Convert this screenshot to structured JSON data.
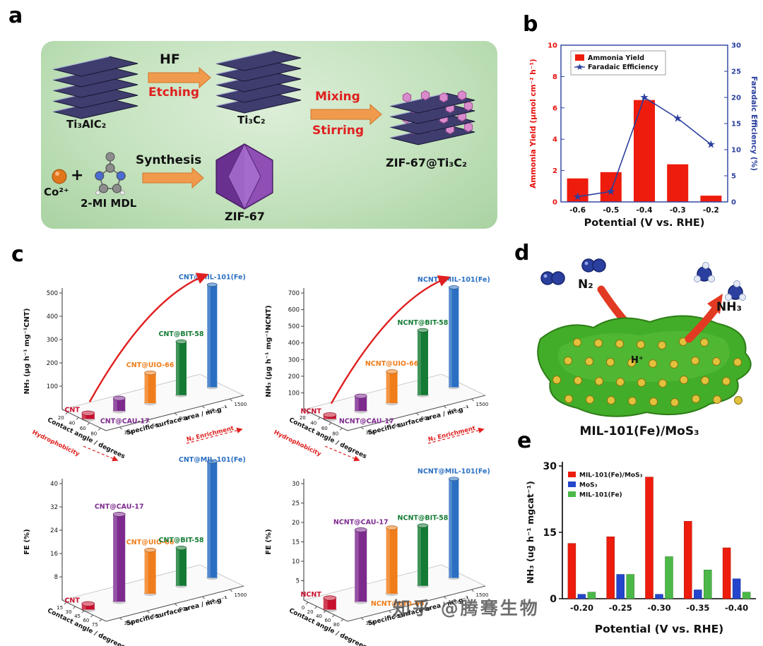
{
  "figure": {
    "panel_labels": {
      "a": "a",
      "b": "b",
      "c": "c",
      "d": "d",
      "e": "e"
    },
    "watermark": "知乎 @腾骞生物"
  },
  "panel_a": {
    "ti3alc2": "Ti₃AlC₂",
    "hf": "HF",
    "etching": "Etching",
    "ti3c2": "Ti₃C₂",
    "mixing": "Mixing",
    "stirring": "Stirring",
    "product": "ZIF-67@Ti₃C₂",
    "co": "Co²⁺",
    "plus": "+",
    "mdl": "2-MI MDL",
    "synthesis": "Synthesis",
    "zif67": "ZIF-67"
  },
  "panel_d": {
    "n2": "N₂",
    "h_plus": "H⁺",
    "nh3": "NH₃",
    "caption": "MIL-101(Fe)/MoS₃"
  },
  "chart_data": [
    {
      "id": "b",
      "type": "bar+line",
      "xlabel": "Potential (V vs. RHE)",
      "categories": [
        "-0.6",
        "-0.5",
        "-0.4",
        "-0.3",
        "-0.2"
      ],
      "left_axis": {
        "label": "Ammonia Yield (μmol cm⁻² h⁻¹)",
        "range": [
          0,
          10
        ],
        "ticks": [
          0,
          2,
          4,
          6,
          8,
          10
        ],
        "color": "#e8100c"
      },
      "right_axis": {
        "label": "Faradaic Efficiency (%)",
        "range": [
          0,
          30
        ],
        "ticks": [
          0,
          5,
          10,
          15,
          20,
          25,
          30
        ],
        "color": "#2b3f9e"
      },
      "series": [
        {
          "name": "Ammonia Yield",
          "type": "bar",
          "color": "#ee1c0c",
          "values": [
            1.5,
            1.9,
            6.5,
            2.4,
            0.4
          ]
        },
        {
          "name": "Faradaic Efficiency",
          "type": "line",
          "color": "#2b3f9e",
          "values": [
            1,
            2,
            20,
            16,
            11
          ]
        }
      ]
    },
    {
      "id": "c-top-left",
      "type": "bar3d",
      "ylabel": "NH₃ (μg h⁻¹ mg⁻¹CNT)",
      "ylim": [
        0,
        500
      ],
      "yticks": [
        100,
        200,
        300,
        400,
        500
      ],
      "x1label": "Contact angle / degrees",
      "x2label": "Specific surface area / m² g⁻¹",
      "x1ticks": [
        20,
        40,
        60,
        80
      ],
      "x2ticks": [
        300,
        600,
        900,
        1200,
        1500
      ],
      "red_left": "Hydrophobicity",
      "red_right": "N₂ Enrichment",
      "arrow": true,
      "label_pos": [
        "left",
        "below",
        "above",
        "above",
        "above"
      ],
      "bars": [
        {
          "label": "CNT",
          "value": 25,
          "color": "#c8102e"
        },
        {
          "label": "CNT@CAU-17",
          "value": 55,
          "color": "#7d2a8e"
        },
        {
          "label": "CNT@UIO-66",
          "value": 130,
          "color": "#f07d1a"
        },
        {
          "label": "CNT@BIT-58",
          "value": 230,
          "color": "#147a34"
        },
        {
          "label": "CNT@MIL-101(Fe)",
          "value": 440,
          "color": "#2a6fc2"
        }
      ]
    },
    {
      "id": "c-top-right",
      "type": "bar3d",
      "ylabel": "NH₃ (μg h⁻¹ mg⁻¹NCNT)",
      "ylim": [
        0,
        700
      ],
      "yticks": [
        100,
        200,
        300,
        400,
        500,
        600,
        700
      ],
      "x1label": "Contact angle / degrees",
      "x2label": "Specific surface area / m² g⁻¹",
      "x1ticks": [
        20,
        40,
        60,
        80
      ],
      "x2ticks": [
        300,
        600,
        900,
        1200,
        1500
      ],
      "red_left": "Hydrophobicity",
      "red_right": "N₂ Enrichment",
      "arrow": true,
      "label_pos": [
        "left",
        "below",
        "above",
        "above",
        "above"
      ],
      "bars": [
        {
          "label": "NCNT",
          "value": 25,
          "color": "#c8102e"
        },
        {
          "label": "NCNT@CAU-17",
          "value": 90,
          "color": "#7d2a8e"
        },
        {
          "label": "NCNT@UIO-66",
          "value": 190,
          "color": "#f07d1a"
        },
        {
          "label": "NCNT@BIT-58",
          "value": 390,
          "color": "#147a34"
        },
        {
          "label": "NCNT@MIL-101(Fe)",
          "value": 600,
          "color": "#2a6fc2"
        }
      ]
    },
    {
      "id": "c-bottom-left",
      "type": "bar3d",
      "ylabel": "FE (%)",
      "ylim": [
        0,
        40
      ],
      "yticks": [
        8,
        16,
        24,
        32,
        40
      ],
      "x1label": "Contact angle / degrees",
      "x2label": "Specific surface area / m² g⁻¹",
      "x1ticks": [
        15,
        30,
        45,
        60,
        75
      ],
      "x2ticks": [
        300,
        600,
        900,
        1200,
        1500
      ],
      "arrow": false,
      "label_pos": [
        "left",
        "above",
        "above",
        "above",
        "above"
      ],
      "bars": [
        {
          "label": "CNT",
          "value": 2,
          "color": "#c8102e"
        },
        {
          "label": "CNT@CAU-17",
          "value": 30,
          "color": "#7d2a8e"
        },
        {
          "label": "CNT@UIO-66",
          "value": 15,
          "color": "#f07d1a"
        },
        {
          "label": "CNT@BIT-58",
          "value": 13,
          "color": "#147a34"
        },
        {
          "label": "CNT@MIL-101(Fe)",
          "value": 40,
          "color": "#2a6fc2"
        }
      ]
    },
    {
      "id": "c-bottom-right",
      "type": "bar3d",
      "ylabel": "FE (%)",
      "ylim": [
        0,
        30
      ],
      "yticks": [
        5,
        10,
        15,
        20,
        25,
        30
      ],
      "x1label": "Contact angle / degrees",
      "x2label": "Specific surface area / m² g⁻¹",
      "x1ticks": [
        0,
        20,
        40,
        60,
        80
      ],
      "x2ticks": [
        300,
        600,
        900,
        1200,
        1500
      ],
      "arrow": false,
      "label_pos": [
        "left",
        "above",
        "below",
        "above",
        "above"
      ],
      "bars": [
        {
          "label": "NCNT",
          "value": 3,
          "color": "#c8102e"
        },
        {
          "label": "NCNT@CAU-17",
          "value": 18.5,
          "color": "#7d2a8e"
        },
        {
          "label": "NCNT@UIO-66",
          "value": 17,
          "color": "#f07d1a"
        },
        {
          "label": "NCNT@BIT-58",
          "value": 15.5,
          "color": "#147a34"
        },
        {
          "label": "NCNT@MIL-101(Fe)",
          "value": 25.5,
          "color": "#2a6fc2"
        }
      ]
    },
    {
      "id": "e",
      "type": "grouped-bar",
      "ylabel": "NH₃ (ug h⁻¹ mgcat⁻¹)",
      "ylim": [
        0,
        30
      ],
      "yticks": [
        0,
        15,
        30
      ],
      "xlabel": "Potential (V vs. RHE)",
      "categories": [
        "-0.20",
        "-0.25",
        "-0.30",
        "-0.35",
        "-0.40"
      ],
      "series": [
        {
          "name": "MIL-101(Fe)/MoS₃",
          "color": "#ee1c0c",
          "values": [
            12.5,
            14,
            27.5,
            17.5,
            11.5
          ]
        },
        {
          "name": "MoS₃",
          "color": "#2446cc",
          "values": [
            1,
            5.5,
            1,
            2,
            4.5
          ]
        },
        {
          "name": "MIL-101(Fe)",
          "color": "#4cb848",
          "values": [
            1.5,
            5.5,
            9.5,
            6.5,
            1.5
          ]
        }
      ]
    }
  ]
}
